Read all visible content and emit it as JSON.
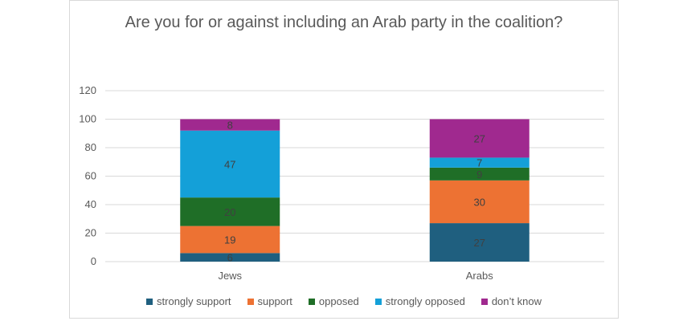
{
  "chart_data": {
    "type": "bar",
    "stacked": true,
    "title": "Are you for or against including an Arab party in the coalition?",
    "categories": [
      "Jews",
      "Arabs"
    ],
    "ylim": [
      0,
      120
    ],
    "yticks": [
      0,
      20,
      40,
      60,
      80,
      100,
      120
    ],
    "grid": true,
    "legend_position": "bottom",
    "series": [
      {
        "name": "strongly support",
        "color": "#1f5f7f",
        "values": [
          6,
          27
        ]
      },
      {
        "name": "support",
        "color": "#ed7233",
        "values": [
          19,
          30
        ]
      },
      {
        "name": "opposed",
        "color": "#1f6e27",
        "values": [
          20,
          9
        ]
      },
      {
        "name": "strongly opposed",
        "color": "#14a0d8",
        "values": [
          47,
          7
        ]
      },
      {
        "name": "don’t know",
        "color": "#a0298f",
        "values": [
          8,
          27
        ]
      }
    ]
  }
}
